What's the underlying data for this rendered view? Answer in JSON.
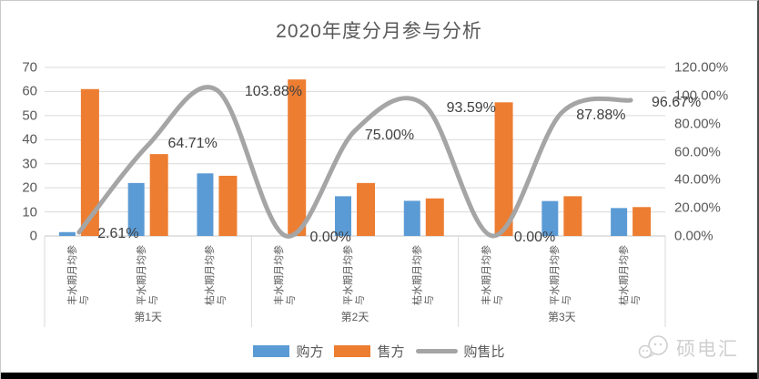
{
  "title": "2020年度分月参与分析",
  "chart_data": {
    "type": "bar",
    "subtype": "combo-bar-line",
    "title": "2020年度分月参与分析",
    "categories": [
      "丰水期月均参与",
      "平水期月均参与",
      "枯水期月均参与",
      "丰水期月均参与",
      "平水期月均参与",
      "枯水期月均参与",
      "丰水期月均参与",
      "平水期月均参与",
      "枯水期月均参与"
    ],
    "groups": [
      {
        "label": "第1天",
        "span": 3
      },
      {
        "label": "第2天",
        "span": 3
      },
      {
        "label": "第3天",
        "span": 3
      }
    ],
    "series": [
      {
        "name": "购方",
        "type": "bar",
        "axis": "left",
        "color": "#5B9BD5",
        "values": [
          1.6,
          22,
          26,
          0,
          16.5,
          14.6,
          0,
          14.5,
          11.6
        ]
      },
      {
        "name": "售方",
        "type": "bar",
        "axis": "left",
        "color": "#ED7D31",
        "values": [
          61,
          34,
          25,
          65,
          22,
          15.6,
          55.5,
          16.5,
          12
        ]
      },
      {
        "name": "购售比",
        "type": "line",
        "axis": "right",
        "color": "#A5A5A5",
        "values": [
          2.61,
          64.71,
          103.88,
          0,
          75,
          93.59,
          0,
          87.88,
          96.67
        ],
        "point_labels": [
          "2.61%",
          "64.71%",
          "103.88%",
          "0.00%",
          "75.00%",
          "93.59%",
          "0.00%",
          "87.88%",
          "96.67%"
        ]
      }
    ],
    "left_axis": {
      "min": 0,
      "max": 70,
      "tick_labels": [
        "70",
        "60",
        "50",
        "40",
        "30",
        "20",
        "10",
        "0"
      ]
    },
    "right_axis": {
      "min": 0,
      "max": 120,
      "tick_labels": [
        "120.00%",
        "100.00%",
        "80.00%",
        "60.00%",
        "40.00%",
        "20.00%",
        "0.00%"
      ]
    },
    "legend_position": "bottom",
    "grid": true,
    "colors": {
      "buyer_bar": "#5B9BD5",
      "seller_bar": "#ED7D31",
      "ratio_line": "#A5A5A5",
      "gridline": "#D9D9D9",
      "axis_text": "#595959",
      "data_label_text": "#404040"
    }
  },
  "watermark": {
    "text": "硕电汇"
  }
}
